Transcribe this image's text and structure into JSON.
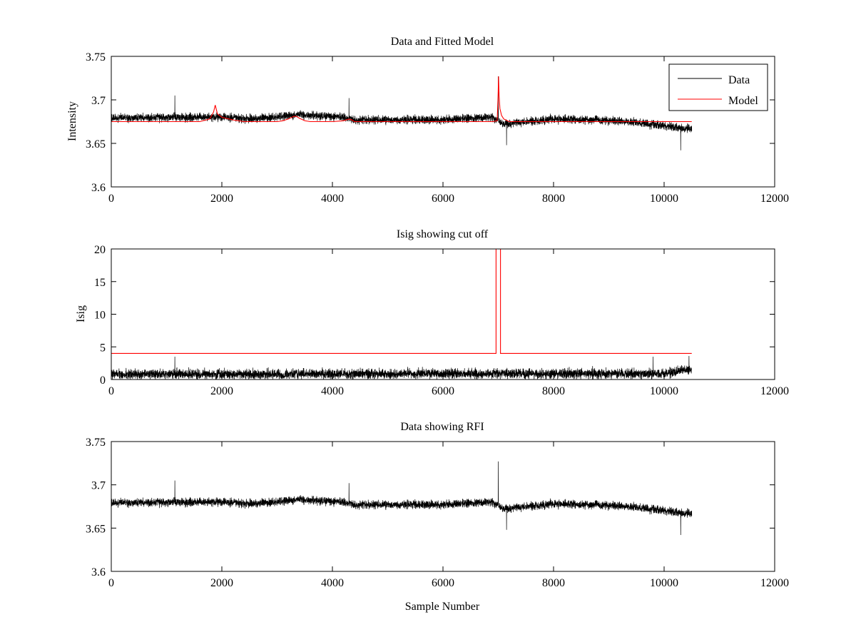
{
  "figure": {
    "panel_count": 3
  },
  "chart_data": [
    {
      "type": "line",
      "title": "Data and Fitted Model",
      "xlabel": "",
      "ylabel": "Intensity",
      "xlim": [
        0,
        12000
      ],
      "ylim": [
        3.6,
        3.75
      ],
      "xticks": [
        0,
        2000,
        4000,
        6000,
        8000,
        10000,
        12000
      ],
      "yticks": [
        3.6,
        3.65,
        3.7,
        3.75
      ],
      "ytick_labels": [
        "3.6",
        "3.65",
        "3.7",
        "3.75"
      ],
      "grid": false,
      "legend": {
        "placement": "top-right",
        "entries": [
          "Data",
          "Model"
        ]
      },
      "series": [
        {
          "name": "Data",
          "color": "#000000",
          "kind": "noisy-signal",
          "n_samples": 10500,
          "baseline": [
            [
              0,
              3.679
            ],
            [
              1200,
              3.68
            ],
            [
              2000,
              3.68
            ],
            [
              2600,
              3.678
            ],
            [
              3400,
              3.683
            ],
            [
              4200,
              3.68
            ],
            [
              4400,
              3.677
            ],
            [
              6000,
              3.677
            ],
            [
              6900,
              3.68
            ],
            [
              7100,
              3.672
            ],
            [
              8000,
              3.678
            ],
            [
              9200,
              3.676
            ],
            [
              10000,
              3.67
            ],
            [
              10500,
              3.666
            ]
          ],
          "noise_amplitude": 0.007,
          "spikes": [
            {
              "x": 7000,
              "y": 3.727
            },
            {
              "x": 1150,
              "y": 3.705
            },
            {
              "x": 4300,
              "y": 3.702
            }
          ],
          "dips": [
            {
              "x": 7150,
              "y": 3.648
            },
            {
              "x": 10300,
              "y": 3.642
            }
          ]
        },
        {
          "name": "Model",
          "color": "#ff0000",
          "kind": "line",
          "x": [
            0,
            1600,
            1780,
            1850,
            1880,
            1920,
            2000,
            2200,
            2400,
            2800,
            3000,
            3100,
            3200,
            3300,
            3350,
            3400,
            3500,
            3600,
            3800,
            4000,
            4200,
            4300,
            4350,
            4400,
            6900,
            6980,
            6995,
            7005,
            7015,
            7030,
            7060,
            7100,
            7200,
            10500
          ],
          "y": [
            3.675,
            3.675,
            3.678,
            3.686,
            3.694,
            3.684,
            3.68,
            3.677,
            3.675,
            3.675,
            3.675,
            3.676,
            3.678,
            3.681,
            3.681,
            3.679,
            3.676,
            3.675,
            3.675,
            3.675,
            3.676,
            3.678,
            3.677,
            3.675,
            3.675,
            3.676,
            3.7,
            3.727,
            3.705,
            3.69,
            3.682,
            3.678,
            3.675,
            3.675
          ]
        }
      ]
    },
    {
      "type": "line",
      "title": "Isig showing cut off",
      "xlabel": "",
      "ylabel": "Isig",
      "xlim": [
        0,
        12000
      ],
      "ylim": [
        0,
        20
      ],
      "xticks": [
        0,
        2000,
        4000,
        6000,
        8000,
        10000,
        12000
      ],
      "yticks": [
        0,
        5,
        10,
        15,
        20
      ],
      "ytick_labels": [
        "0",
        "5",
        "10",
        "15",
        "20"
      ],
      "grid": false,
      "series": [
        {
          "color": "#000000",
          "kind": "noisy-signal",
          "n_samples": 10500,
          "baseline": [
            [
              0,
              0.8
            ],
            [
              10000,
              0.9
            ],
            [
              10500,
              1.6
            ]
          ],
          "noise_amplitude": 1.1,
          "spikes": [
            {
              "x": 1150,
              "y": 3.5
            },
            {
              "x": 9800,
              "y": 3.5
            },
            {
              "x": 10450,
              "y": 3.6
            }
          ]
        },
        {
          "color": "#ff0000",
          "kind": "line",
          "x": [
            0,
            6960,
            6960,
            7040,
            7040,
            10500
          ],
          "y": [
            4,
            4,
            20,
            20,
            4,
            4
          ]
        }
      ]
    },
    {
      "type": "line",
      "title": "Data showing RFI",
      "xlabel": "Sample Number",
      "ylabel": "",
      "xlim": [
        0,
        12000
      ],
      "ylim": [
        3.6,
        3.75
      ],
      "xticks": [
        0,
        2000,
        4000,
        6000,
        8000,
        10000,
        12000
      ],
      "yticks": [
        3.6,
        3.65,
        3.7,
        3.75
      ],
      "ytick_labels": [
        "3.6",
        "3.65",
        "3.7",
        "3.75"
      ],
      "grid": false,
      "series": [
        {
          "color": "#000000",
          "kind": "noisy-signal",
          "n_samples": 10500,
          "baseline": [
            [
              0,
              3.679
            ],
            [
              1200,
              3.68
            ],
            [
              2000,
              3.68
            ],
            [
              2600,
              3.678
            ],
            [
              3400,
              3.683
            ],
            [
              4200,
              3.68
            ],
            [
              4400,
              3.677
            ],
            [
              6000,
              3.677
            ],
            [
              6900,
              3.68
            ],
            [
              7100,
              3.672
            ],
            [
              8000,
              3.678
            ],
            [
              9200,
              3.676
            ],
            [
              10000,
              3.67
            ],
            [
              10500,
              3.666
            ]
          ],
          "noise_amplitude": 0.007,
          "spikes": [
            {
              "x": 7000,
              "y": 3.727
            },
            {
              "x": 1150,
              "y": 3.705
            },
            {
              "x": 4300,
              "y": 3.702
            }
          ],
          "dips": [
            {
              "x": 7150,
              "y": 3.648
            },
            {
              "x": 10300,
              "y": 3.642
            }
          ]
        }
      ]
    }
  ]
}
